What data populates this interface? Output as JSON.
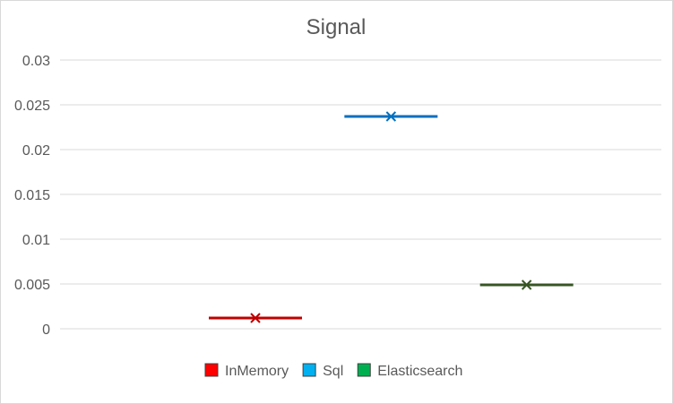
{
  "chart_data": {
    "type": "box",
    "title": "Signal",
    "xlabel": "",
    "ylabel": "",
    "ylim": [
      0,
      0.03
    ],
    "yticks": [
      0,
      0.005,
      0.01,
      0.015,
      0.02,
      0.025,
      0.03
    ],
    "ytick_labels": [
      "0",
      "0.005",
      "0.01",
      "0.015",
      "0.02",
      "0.025",
      "0.03"
    ],
    "grid": true,
    "legend_position": "bottom",
    "series": [
      {
        "name": "InMemory",
        "color": "#c00000",
        "legend_color": "#ff0000",
        "median": 0.0012,
        "mean": 0.0012
      },
      {
        "name": "Sql",
        "color": "#0070c0",
        "legend_color": "#00b0f0",
        "median": 0.0237,
        "mean": 0.0237
      },
      {
        "name": "Elasticsearch",
        "color": "#375623",
        "legend_color": "#00b050",
        "median": 0.0049,
        "mean": 0.0049
      }
    ]
  }
}
